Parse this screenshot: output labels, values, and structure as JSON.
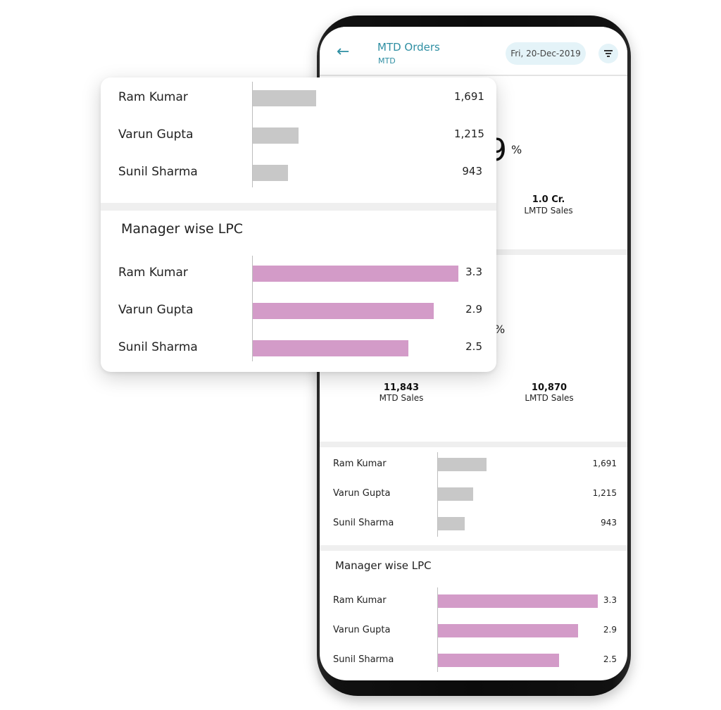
{
  "header": {
    "title": "MTD Orders",
    "subtitle": "MTD",
    "date": "Fri, 20-Dec-2019",
    "back_icon": "arrow-left-icon",
    "filter_icon": "filter-icon"
  },
  "colors": {
    "accent": "#2f8fa3",
    "pill_bg": "#e4f3f8",
    "bar_grey": "#c8c8c8",
    "bar_pink": "#d39bc8"
  },
  "summary1": {
    "partial_percent": "9",
    "percent_sign": "%",
    "lmtd_sales_value": "1.0 Cr.",
    "lmtd_sales_label": "LMTD Sales"
  },
  "summary2": {
    "percent_sign": "%",
    "mtd_sales_value": "11,843",
    "mtd_sales_label": "MTD Sales",
    "lmtd_sales_value": "10,870",
    "lmtd_sales_label": "LMTD Sales"
  },
  "sales_chart": {
    "rows": [
      {
        "name": "Ram Kumar",
        "value": "1,691",
        "num": 1691
      },
      {
        "name": "Varun Gupta",
        "value": "1,215",
        "num": 1215
      },
      {
        "name": "Sunil Sharma",
        "value": "943",
        "num": 943
      }
    ]
  },
  "lpc_chart": {
    "title": "Manager wise LPC",
    "rows": [
      {
        "name": "Ram Kumar",
        "value": "3.3",
        "num": 3.3
      },
      {
        "name": "Varun Gupta",
        "value": "2.9",
        "num": 2.9
      },
      {
        "name": "Sunil Sharma",
        "value": "2.5",
        "num": 2.5
      }
    ]
  }
}
